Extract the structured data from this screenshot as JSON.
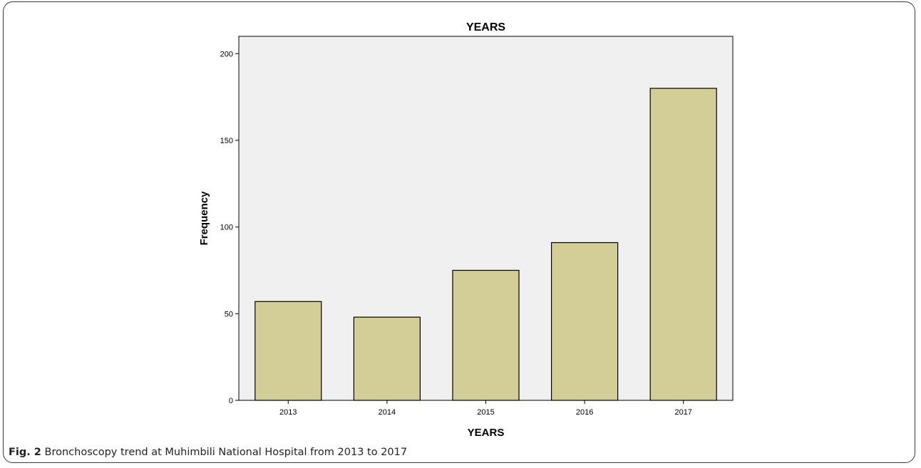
{
  "chart_data": {
    "type": "bar",
    "title": "YEARS",
    "xlabel": "YEARS",
    "ylabel": "Frequency",
    "categories": [
      "2013",
      "2014",
      "2015",
      "2016",
      "2017"
    ],
    "values": [
      57,
      48,
      75,
      91,
      180
    ],
    "ylim": [
      0,
      210
    ],
    "yticks": [
      0,
      50,
      100,
      150,
      200
    ],
    "grid": false,
    "legend": "none",
    "bar_color": "#d3cd97",
    "bar_edge_color": "#000000",
    "plot_background": "#f0f0f0"
  },
  "caption": {
    "label": "Fig. 2",
    "text": "Bronchoscopy trend at Muhimbili National Hospital from 2013 to 2017"
  }
}
